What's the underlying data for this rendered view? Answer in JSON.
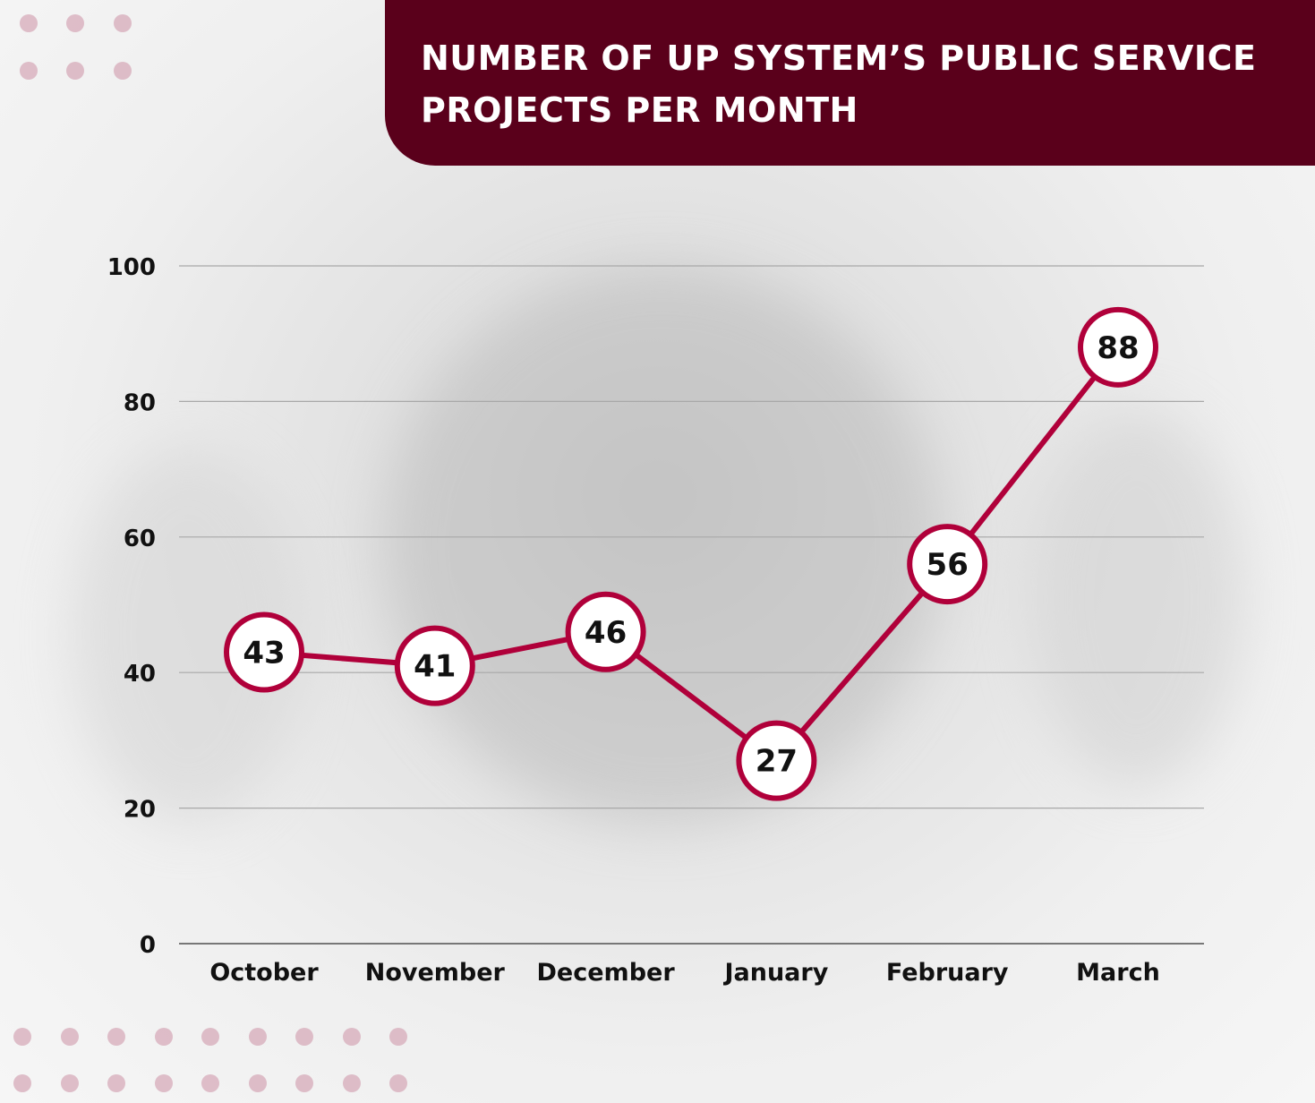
{
  "title": "NUMBER OF UP SYSTEM’S PUBLIC SERVICE PROJECTS PER MONTH",
  "colors": {
    "title_bg": "#5a001b",
    "line": "#b0003a",
    "marker_fill": "#ffffff",
    "dot": "#d9b3c0",
    "grid": "#a8a8a8"
  },
  "chart_data": {
    "type": "line",
    "title": "NUMBER OF UP SYSTEM’S PUBLIC SERVICE PROJECTS PER MONTH",
    "xlabel": "",
    "ylabel": "",
    "categories": [
      "October",
      "November",
      "December",
      "January",
      "February",
      "March"
    ],
    "series": [
      {
        "values": [
          43,
          41,
          46,
          27,
          56,
          88
        ]
      }
    ],
    "ylim": [
      0,
      100
    ],
    "yticks": [
      0,
      20,
      40,
      60,
      80,
      100
    ],
    "grid": true,
    "data_labels": true
  }
}
